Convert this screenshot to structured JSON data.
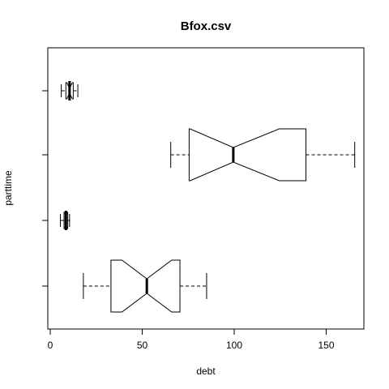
{
  "chart_data": {
    "type": "boxplot",
    "orientation": "horizontal",
    "notched": true,
    "title": "Bfox.csv",
    "xlabel": "debt",
    "ylabel": "parttime",
    "xlim": [
      0,
      170
    ],
    "xticks": [
      0,
      50,
      100,
      150
    ],
    "categories": [
      "",
      "",
      "",
      ""
    ],
    "boxes": [
      {
        "whisker_low": 18,
        "q1": 33,
        "notch_low": 39,
        "median": 52.5,
        "notch_high": 66,
        "q3": 70.5,
        "whisker_high": 85
      },
      {
        "whisker_low": 5.5,
        "q1": 7.5,
        "notch_low": 8,
        "median": 8.5,
        "notch_high": 9,
        "q3": 9.5,
        "whisker_high": 10.5
      },
      {
        "whisker_low": 65.5,
        "q1": 75.5,
        "notch_low": 76,
        "median": 99.5,
        "notch_high": 124.5,
        "q3": 139,
        "whisker_high": 165.5
      },
      {
        "whisker_low": 6,
        "q1": 8.5,
        "notch_low": 9,
        "median": 10.5,
        "notch_high": 12,
        "q3": 12.5,
        "whisker_high": 15
      }
    ],
    "grid": false,
    "legend": "none"
  }
}
